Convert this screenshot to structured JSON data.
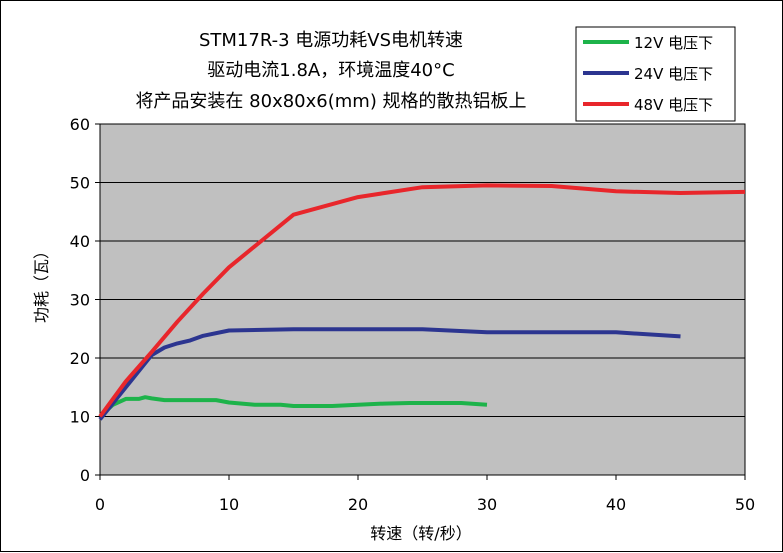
{
  "chart_data": {
    "type": "line",
    "title_lines": [
      "STM17R-3 电源功耗VS电机转速",
      "驱动电流1.8A，环境温度40°C",
      "将产品安装在 80x80x6(mm) 规格的散热铝板上"
    ],
    "xlabel": "转速（转/秒）",
    "ylabel": "功耗（瓦）",
    "xlim": [
      0,
      50
    ],
    "ylim": [
      0,
      60
    ],
    "xticks": [
      0,
      10,
      20,
      30,
      40,
      50
    ],
    "yticks": [
      0,
      10,
      20,
      30,
      40,
      50,
      60
    ],
    "grid": "horizontal",
    "plot_background": "#c0c0c0",
    "legend_position": "top-right",
    "series": [
      {
        "name": "12V 电压下",
        "color": "#1db34a",
        "x": [
          0,
          1,
          2,
          3,
          3.5,
          4,
          5,
          6,
          7,
          8,
          9,
          10,
          11,
          12,
          13,
          14,
          15,
          16,
          17,
          18,
          20,
          22,
          24,
          26,
          28,
          30
        ],
        "y": [
          10,
          12,
          13,
          13,
          13.3,
          13.1,
          12.8,
          12.8,
          12.8,
          12.8,
          12.8,
          12.4,
          12.2,
          12.0,
          12.0,
          12.0,
          11.8,
          11.8,
          11.8,
          11.8,
          12.0,
          12.2,
          12.3,
          12.3,
          12.3,
          12.0
        ]
      },
      {
        "name": "24V 电压下",
        "color": "#2c3590",
        "x": [
          0,
          2,
          4,
          5,
          6,
          7,
          8,
          10,
          15,
          20,
          25,
          30,
          35,
          40,
          45
        ],
        "y": [
          9.5,
          15,
          20.5,
          21.8,
          22.5,
          23,
          23.8,
          24.7,
          24.9,
          24.9,
          24.9,
          24.4,
          24.4,
          24.4,
          23.7
        ]
      },
      {
        "name": "48V 电压下",
        "color": "#e8262b",
        "x": [
          0,
          2,
          4,
          6,
          8,
          10,
          15,
          20,
          25,
          30,
          35,
          40,
          45,
          50
        ],
        "y": [
          10,
          16,
          21,
          26.2,
          31,
          35.5,
          44.5,
          47.5,
          49.2,
          49.5,
          49.4,
          48.5,
          48.2,
          48.4
        ]
      }
    ]
  }
}
